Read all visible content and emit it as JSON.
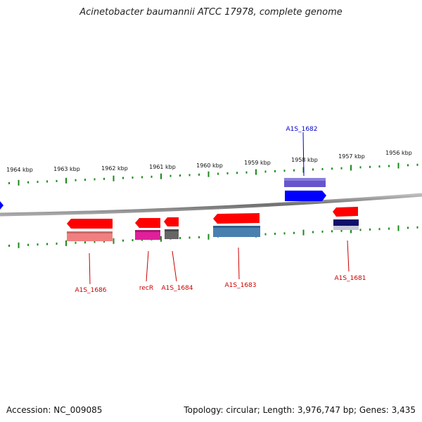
{
  "title": "Acinetobacter baumannii ATCC 17978, complete genome",
  "footer": {
    "accession": "Accession: NC_009085",
    "summary": "Topology: circular; Length: 3,976,747 bp; Genes: 3,435"
  },
  "ticks": [
    "1964 kbp",
    "1963 kbp",
    "1962 kbp",
    "1961 kbp",
    "1960 kbp",
    "1959 kbp",
    "1958 kbp",
    "1957 kbp",
    "1956 kbp"
  ],
  "genes": [
    {
      "label": "A1S_1682",
      "strand": "forward",
      "color": "#0000cc",
      "cds_color": "#6655cc"
    },
    {
      "label": "A1S_1686",
      "strand": "reverse",
      "color": "#ff0000",
      "cds_color": "#f08080"
    },
    {
      "label": "recR",
      "strand": "reverse",
      "color": "#ff0000",
      "cds_color": "#e0209a"
    },
    {
      "label": "A1S_1684",
      "strand": "reverse",
      "color": "#ff0000",
      "cds_color": "#666666"
    },
    {
      "label": "A1S_1683",
      "strand": "reverse",
      "color": "#ff0000",
      "cds_color": "#4a80b0"
    },
    {
      "label": "A1S_1681",
      "strand": "reverse",
      "color": "#ff0000",
      "cds_color": "#10106a"
    }
  ],
  "colors": {
    "backbone": "#808080",
    "tick_marks": "#1a8a1a",
    "forward_label": "#0000cc",
    "reverse_label": "#cc0000",
    "forward_arrow": "#0000ff",
    "reverse_arrow": "#ff0000"
  }
}
